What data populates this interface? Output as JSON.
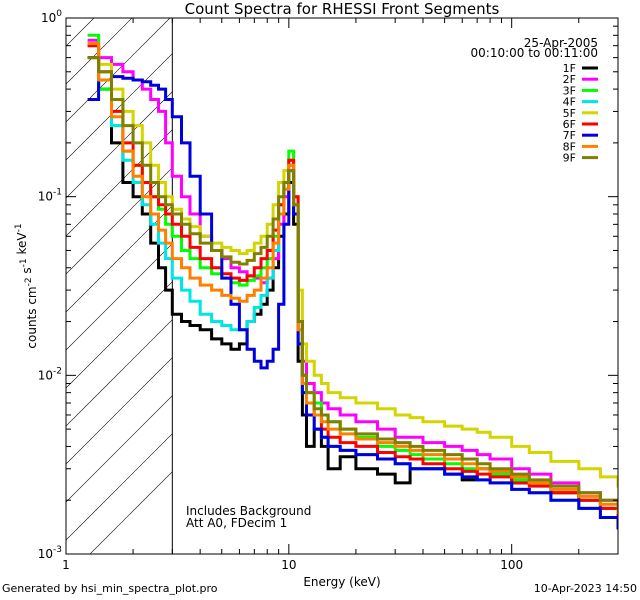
{
  "chart_data": {
    "type": "line",
    "title": "Count Spectra for RHESSI Front Segments",
    "xlabel": "Energy (keV)",
    "ylabel": "counts cm-2 s-1 keV-1",
    "xscale": "log",
    "yscale": "log",
    "xlim": [
      1,
      300
    ],
    "ylim": [
      0.001,
      1
    ],
    "x_tick_labels": [
      "1",
      "10",
      "100"
    ],
    "y_tick_labels": [
      "10^0",
      "10^-1",
      "10^-2",
      "10^-3"
    ],
    "shaded_region_keV": [
      1,
      3
    ],
    "legend": {
      "date": "25-Apr-2005",
      "time_range": "00:10:00 to 00:11:00",
      "placement": "top-right"
    },
    "annotations": [
      "Includes Background",
      "Att A0, FDecim 1"
    ],
    "series": [
      {
        "name": "1F",
        "color": "#000000",
        "x": [
          1.25,
          1.4,
          1.6,
          1.8,
          2.0,
          2.2,
          2.4,
          2.6,
          2.8,
          3.0,
          3.3,
          3.6,
          4.0,
          4.5,
          5.0,
          5.5,
          6.0,
          6.5,
          7.0,
          7.5,
          8.0,
          8.5,
          9.0,
          9.5,
          10.0,
          10.5,
          11.0,
          11.5,
          12,
          13,
          14,
          15,
          17,
          20,
          25,
          30,
          35,
          40,
          50,
          60,
          70,
          80,
          100,
          120,
          150,
          200,
          250,
          300
        ],
        "y": [
          0.6,
          0.4,
          0.2,
          0.12,
          0.1,
          0.08,
          0.055,
          0.04,
          0.03,
          0.022,
          0.02,
          0.019,
          0.018,
          0.016,
          0.015,
          0.014,
          0.015,
          0.02,
          0.022,
          0.025,
          0.03,
          0.04,
          0.06,
          0.08,
          0.12,
          0.07,
          0.012,
          0.006,
          0.004,
          0.005,
          0.004,
          0.003,
          0.0035,
          0.003,
          0.0028,
          0.0025,
          0.003,
          0.003,
          0.0028,
          0.0026,
          0.003,
          0.0028,
          0.0025,
          0.0025,
          0.0022,
          0.002,
          0.0018,
          0.0015
        ]
      },
      {
        "name": "2F",
        "color": "#ff00ff",
        "x": [
          1.25,
          1.4,
          1.6,
          1.8,
          2.0,
          2.2,
          2.4,
          2.6,
          2.8,
          3.0,
          3.3,
          3.6,
          4.0,
          4.5,
          5.0,
          5.5,
          6.0,
          6.5,
          7.0,
          7.5,
          8.0,
          8.5,
          9.0,
          9.5,
          10.0,
          10.5,
          11.0,
          11.5,
          12,
          13,
          14,
          15,
          17,
          20,
          25,
          30,
          35,
          40,
          50,
          60,
          70,
          80,
          100,
          120,
          150,
          200,
          250,
          300
        ],
        "y": [
          0.75,
          0.6,
          0.55,
          0.5,
          0.45,
          0.4,
          0.35,
          0.3,
          0.2,
          0.13,
          0.1,
          0.08,
          0.06,
          0.05,
          0.045,
          0.04,
          0.038,
          0.036,
          0.035,
          0.033,
          0.035,
          0.045,
          0.07,
          0.1,
          0.15,
          0.09,
          0.02,
          0.012,
          0.009,
          0.008,
          0.007,
          0.0065,
          0.006,
          0.0055,
          0.005,
          0.0045,
          0.0045,
          0.0042,
          0.004,
          0.0038,
          0.0036,
          0.0034,
          0.003,
          0.0028,
          0.0025,
          0.0022,
          0.002,
          0.0018
        ]
      },
      {
        "name": "3F",
        "color": "#00ff00",
        "x": [
          1.25,
          1.4,
          1.6,
          1.8,
          2.0,
          2.2,
          2.4,
          2.6,
          2.8,
          3.0,
          3.3,
          3.6,
          4.0,
          4.5,
          5.0,
          5.5,
          6.0,
          6.5,
          7.0,
          7.5,
          8.0,
          8.5,
          9.0,
          9.5,
          10.0,
          10.5,
          11.0,
          11.5,
          12,
          13,
          14,
          15,
          17,
          20,
          25,
          30,
          35,
          40,
          50,
          60,
          70,
          80,
          100,
          120,
          150,
          200,
          250,
          300
        ],
        "y": [
          0.8,
          0.4,
          0.25,
          0.18,
          0.15,
          0.12,
          0.1,
          0.085,
          0.07,
          0.06,
          0.05,
          0.045,
          0.04,
          0.037,
          0.035,
          0.033,
          0.032,
          0.034,
          0.036,
          0.04,
          0.045,
          0.06,
          0.09,
          0.12,
          0.18,
          0.1,
          0.02,
          0.01,
          0.008,
          0.007,
          0.006,
          0.0055,
          0.005,
          0.0045,
          0.004,
          0.0038,
          0.0036,
          0.0034,
          0.0032,
          0.003,
          0.003,
          0.0028,
          0.0026,
          0.0025,
          0.0022,
          0.002,
          0.0018,
          0.0016
        ]
      },
      {
        "name": "4F",
        "color": "#00e5e5",
        "x": [
          1.25,
          1.4,
          1.6,
          1.8,
          2.0,
          2.2,
          2.4,
          2.6,
          2.8,
          3.0,
          3.3,
          3.6,
          4.0,
          4.5,
          5.0,
          5.5,
          6.0,
          6.5,
          7.0,
          7.5,
          8.0,
          8.5,
          9.0,
          9.5,
          10.0,
          10.5,
          11.0,
          11.5,
          12,
          13,
          14,
          15,
          17,
          20,
          25,
          30,
          35,
          40,
          50,
          60,
          70,
          80,
          100,
          120,
          150,
          200,
          250,
          300
        ],
        "y": [
          0.7,
          0.45,
          0.25,
          0.16,
          0.12,
          0.09,
          0.07,
          0.055,
          0.045,
          0.035,
          0.03,
          0.026,
          0.022,
          0.02,
          0.019,
          0.018,
          0.018,
          0.02,
          0.024,
          0.028,
          0.035,
          0.05,
          0.08,
          0.11,
          0.16,
          0.09,
          0.015,
          0.008,
          0.006,
          0.005,
          0.0045,
          0.004,
          0.0038,
          0.0036,
          0.0034,
          0.0032,
          0.003,
          0.003,
          0.0028,
          0.0027,
          0.0026,
          0.0025,
          0.0023,
          0.0022,
          0.002,
          0.0018,
          0.0016,
          0.0014
        ]
      },
      {
        "name": "5F",
        "color": "#d4d400",
        "x": [
          1.25,
          1.4,
          1.6,
          1.8,
          2.0,
          2.2,
          2.4,
          2.6,
          2.8,
          3.0,
          3.3,
          3.6,
          4.0,
          4.5,
          5.0,
          5.5,
          6.0,
          6.5,
          7.0,
          7.5,
          8.0,
          8.5,
          9.0,
          9.5,
          10.0,
          10.5,
          11.0,
          11.5,
          12,
          13,
          14,
          15,
          17,
          20,
          25,
          30,
          35,
          40,
          50,
          60,
          70,
          80,
          100,
          120,
          150,
          200,
          250,
          300
        ],
        "y": [
          0.72,
          0.55,
          0.4,
          0.3,
          0.25,
          0.2,
          0.15,
          0.12,
          0.1,
          0.085,
          0.075,
          0.068,
          0.06,
          0.055,
          0.052,
          0.05,
          0.048,
          0.05,
          0.055,
          0.06,
          0.07,
          0.09,
          0.12,
          0.14,
          0.16,
          0.1,
          0.03,
          0.015,
          0.012,
          0.01,
          0.009,
          0.008,
          0.0075,
          0.007,
          0.0065,
          0.006,
          0.0058,
          0.0055,
          0.0052,
          0.005,
          0.0048,
          0.0045,
          0.004,
          0.0037,
          0.0033,
          0.003,
          0.0027,
          0.0024
        ]
      },
      {
        "name": "6F",
        "color": "#ff0000",
        "x": [
          1.25,
          1.4,
          1.6,
          1.8,
          2.0,
          2.2,
          2.4,
          2.6,
          2.8,
          3.0,
          3.3,
          3.6,
          4.0,
          4.5,
          5.0,
          5.5,
          6.0,
          6.5,
          7.0,
          7.5,
          8.0,
          8.5,
          9.0,
          9.5,
          10.0,
          10.5,
          11.0,
          11.5,
          12,
          13,
          14,
          15,
          17,
          20,
          25,
          30,
          35,
          40,
          50,
          60,
          70,
          80,
          100,
          120,
          150,
          200,
          250,
          300
        ],
        "y": [
          0.7,
          0.5,
          0.3,
          0.2,
          0.15,
          0.12,
          0.1,
          0.09,
          0.08,
          0.07,
          0.06,
          0.052,
          0.045,
          0.04,
          0.037,
          0.035,
          0.034,
          0.036,
          0.04,
          0.045,
          0.05,
          0.065,
          0.09,
          0.12,
          0.16,
          0.1,
          0.02,
          0.01,
          0.007,
          0.006,
          0.005,
          0.0045,
          0.0042,
          0.004,
          0.0037,
          0.0035,
          0.0034,
          0.0032,
          0.003,
          0.0029,
          0.0028,
          0.0027,
          0.0025,
          0.0024,
          0.0022,
          0.002,
          0.0018,
          0.0016
        ]
      },
      {
        "name": "7F",
        "color": "#0000dd",
        "x": [
          1.25,
          1.4,
          1.6,
          1.8,
          2.0,
          2.2,
          2.4,
          2.6,
          2.8,
          3.0,
          3.3,
          3.6,
          4.0,
          4.5,
          5.0,
          5.5,
          6.0,
          6.5,
          7.0,
          7.5,
          8.0,
          8.5,
          9.0,
          9.5,
          10.0,
          10.5,
          11.0,
          11.5,
          12,
          13,
          14,
          15,
          17,
          20,
          25,
          30,
          35,
          40,
          50,
          60,
          70,
          80,
          100,
          120,
          150,
          200,
          250,
          300
        ],
        "y": [
          0.35,
          0.45,
          0.47,
          0.46,
          0.45,
          0.44,
          0.42,
          0.4,
          0.35,
          0.28,
          0.2,
          0.13,
          0.08,
          0.05,
          0.035,
          0.025,
          0.018,
          0.014,
          0.012,
          0.011,
          0.012,
          0.014,
          0.025,
          0.07,
          0.14,
          0.08,
          0.015,
          0.008,
          0.006,
          0.005,
          0.0045,
          0.004,
          0.0038,
          0.0036,
          0.0034,
          0.0032,
          0.003,
          0.003,
          0.0028,
          0.0027,
          0.0026,
          0.0025,
          0.0023,
          0.0022,
          0.002,
          0.0018,
          0.0016,
          0.0014
        ]
      },
      {
        "name": "8F",
        "color": "#ff8000",
        "x": [
          1.25,
          1.4,
          1.6,
          1.8,
          2.0,
          2.2,
          2.4,
          2.6,
          2.8,
          3.0,
          3.3,
          3.6,
          4.0,
          4.5,
          5.0,
          5.5,
          6.0,
          6.5,
          7.0,
          7.5,
          8.0,
          8.5,
          9.0,
          9.5,
          10.0,
          10.5,
          11.0,
          11.5,
          12,
          13,
          14,
          15,
          17,
          20,
          25,
          30,
          35,
          40,
          50,
          60,
          70,
          80,
          100,
          120,
          150,
          200,
          250,
          300
        ],
        "y": [
          0.72,
          0.45,
          0.28,
          0.18,
          0.13,
          0.1,
          0.08,
          0.065,
          0.055,
          0.045,
          0.04,
          0.035,
          0.032,
          0.03,
          0.028,
          0.027,
          0.026,
          0.028,
          0.03,
          0.035,
          0.04,
          0.055,
          0.08,
          0.11,
          0.15,
          0.09,
          0.018,
          0.009,
          0.007,
          0.006,
          0.0055,
          0.005,
          0.0047,
          0.0044,
          0.0042,
          0.004,
          0.0038,
          0.0036,
          0.0034,
          0.0032,
          0.003,
          0.0029,
          0.0027,
          0.0025,
          0.0023,
          0.0021,
          0.0019,
          0.0017
        ]
      },
      {
        "name": "9F",
        "color": "#808000",
        "x": [
          1.25,
          1.4,
          1.6,
          1.8,
          2.0,
          2.2,
          2.4,
          2.6,
          2.8,
          3.0,
          3.3,
          3.6,
          4.0,
          4.5,
          5.0,
          5.5,
          6.0,
          6.5,
          7.0,
          7.5,
          8.0,
          8.5,
          9.0,
          9.5,
          10.0,
          10.5,
          11.0,
          11.5,
          12,
          13,
          14,
          15,
          17,
          20,
          25,
          30,
          35,
          40,
          50,
          60,
          70,
          80,
          100,
          120,
          150,
          200,
          250,
          300
        ],
        "y": [
          0.6,
          0.5,
          0.35,
          0.25,
          0.2,
          0.15,
          0.12,
          0.1,
          0.09,
          0.08,
          0.07,
          0.062,
          0.055,
          0.05,
          0.046,
          0.043,
          0.042,
          0.044,
          0.048,
          0.052,
          0.06,
          0.075,
          0.1,
          0.12,
          0.14,
          0.09,
          0.02,
          0.01,
          0.008,
          0.0065,
          0.006,
          0.0055,
          0.005,
          0.0047,
          0.0044,
          0.0042,
          0.004,
          0.0038,
          0.0036,
          0.0034,
          0.0032,
          0.003,
          0.0028,
          0.0026,
          0.0024,
          0.0022,
          0.002,
          0.0018
        ]
      }
    ]
  },
  "footer": {
    "generated_by": "Generated by hsi_min_spectra_plot.pro",
    "timestamp": "10-Apr-2023 14:50"
  }
}
